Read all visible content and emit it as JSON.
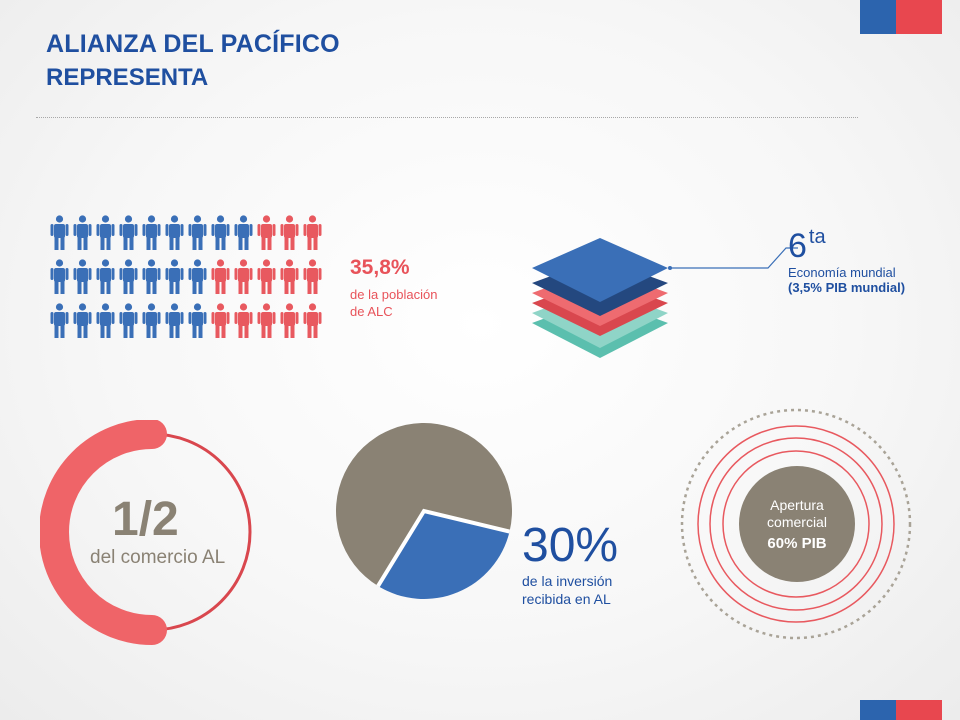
{
  "header": {
    "title": "ALIANZA DEL PACÍFICO",
    "subtitle": "REPRESENTA"
  },
  "population": {
    "value": "35,8%",
    "line1": "de la población",
    "line2": "de ALC",
    "share": 0.358,
    "grid_rows": 3,
    "grid_cols": 12,
    "red_per_row": [
      3,
      5,
      5
    ]
  },
  "economy": {
    "rank_number": "6",
    "rank_suffix": "ta",
    "label": "Economía mundial",
    "sub": "(3,5% PIB mundial)"
  },
  "trade": {
    "value": "1/2",
    "label": "del comercio AL",
    "fraction": 0.5
  },
  "investment": {
    "value": "30%",
    "line1": "de la inversión",
    "line2": "recibida en AL",
    "share": 0.3
  },
  "openness": {
    "line1": "Apertura",
    "line2": "comercial",
    "line3": "60% PIB"
  },
  "colors": {
    "blue": "#3a6fb7",
    "red": "#e8595f",
    "gray": "#8a8274",
    "teal": "#5bbfae",
    "flag_blue": "#2c64ae",
    "flag_red": "#e8474f"
  }
}
